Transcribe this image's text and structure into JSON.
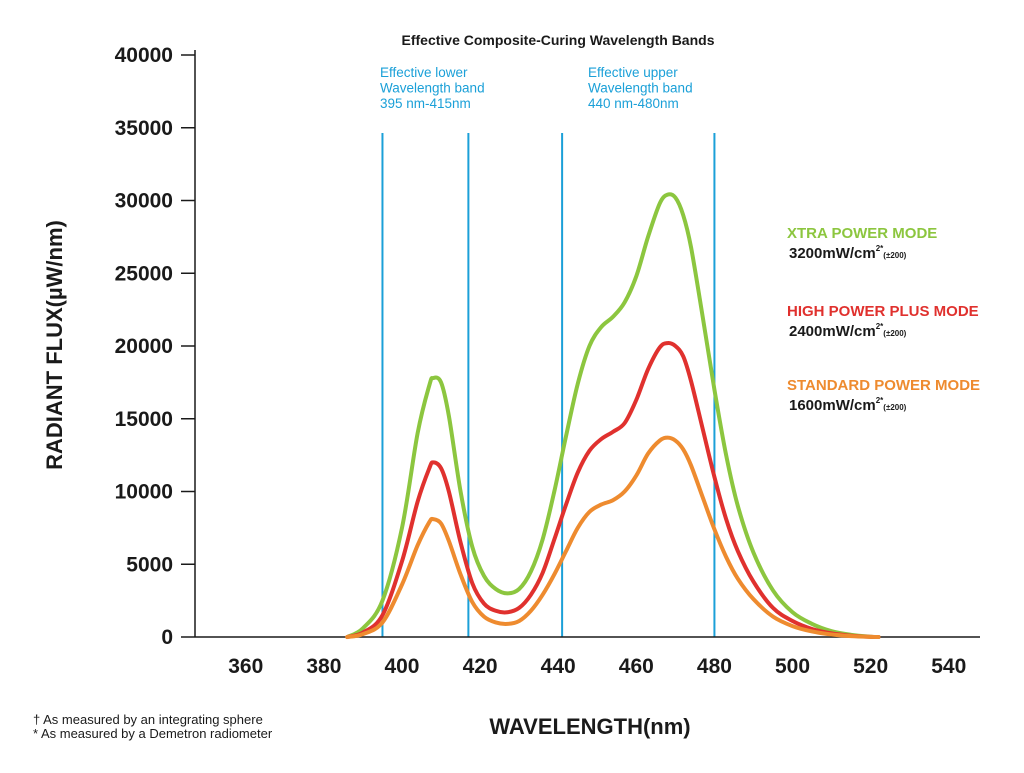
{
  "chart_data": {
    "type": "line",
    "title": "Effective Composite-Curing Wavelength Bands",
    "xlabel": "WAVELENGTH(nm)",
    "ylabel": "RADIANT FLUX(µW/nm)",
    "xlim": [
      347,
      548
    ],
    "ylim": [
      0,
      40000
    ],
    "x_ticks": [
      "360",
      "380",
      "400",
      "420",
      "440",
      "460",
      "480",
      "500",
      "520",
      "540"
    ],
    "y_ticks": [
      "0",
      "5000",
      "10000",
      "15000",
      "20000",
      "25000",
      "30000",
      "35000",
      "40000"
    ],
    "grid": false,
    "band_lines": [
      395,
      417,
      441,
      480
    ],
    "band_labels": [
      {
        "lines": [
          "Effective lower",
          "Wavelength band",
          "395 nm-415nm"
        ]
      },
      {
        "lines": [
          "Effective upper",
          "Wavelength band",
          "440 nm-480nm"
        ]
      }
    ],
    "series": [
      {
        "name": "XTRA POWER MODE",
        "value_text": "3200mW/cm",
        "sup_text": "2*",
        "tolerance_text": "(±200)",
        "color": "#8cc63f",
        "x": [
          386,
          390,
          395,
          400,
          404,
          407,
          408,
          410,
          412,
          415,
          418,
          421,
          424,
          427,
          430,
          433,
          436,
          439,
          442,
          445,
          448,
          451,
          454,
          457,
          460,
          463,
          466,
          468,
          470,
          472,
          474,
          477,
          480,
          483,
          486,
          490,
          495,
          500,
          505,
          510,
          515,
          520,
          522
        ],
        "y": [
          0,
          600,
          2500,
          7500,
          14000,
          17300,
          17800,
          17500,
          15200,
          10000,
          6200,
          4200,
          3300,
          3000,
          3300,
          4500,
          6700,
          10000,
          13800,
          17400,
          20000,
          21300,
          22000,
          23000,
          24800,
          27500,
          29800,
          30400,
          30200,
          29000,
          26800,
          22000,
          17000,
          12500,
          9000,
          5800,
          3200,
          1700,
          900,
          400,
          150,
          20,
          0
        ]
      },
      {
        "name": "HIGH POWER PLUS MODE",
        "value_text": "2400mW/cm",
        "sup_text": "2*",
        "tolerance_text": "(±200)",
        "color": "#e0312e",
        "x": [
          386,
          390,
          395,
          400,
          404,
          407,
          408,
          410,
          412,
          415,
          418,
          421,
          424,
          427,
          430,
          433,
          436,
          439,
          442,
          445,
          448,
          451,
          454,
          457,
          460,
          463,
          466,
          468,
          470,
          472,
          474,
          477,
          480,
          483,
          486,
          490,
          495,
          500,
          505,
          510,
          515,
          520,
          522
        ],
        "y": [
          0,
          300,
          1500,
          5200,
          9300,
          11600,
          12000,
          11600,
          10000,
          6500,
          3700,
          2300,
          1800,
          1700,
          2000,
          2900,
          4400,
          6700,
          9100,
          11300,
          12800,
          13600,
          14100,
          14700,
          16300,
          18400,
          19900,
          20200,
          20000,
          19300,
          17600,
          14300,
          11000,
          8100,
          5900,
          3800,
          2000,
          1100,
          550,
          250,
          90,
          10,
          0
        ]
      },
      {
        "name": "STANDARD POWER MODE",
        "value_text": "1600mW/cm",
        "sup_text": "2*",
        "tolerance_text": "(±200)",
        "color": "#ee8b2f",
        "x": [
          386,
          390,
          395,
          400,
          404,
          407,
          408,
          410,
          412,
          415,
          418,
          421,
          424,
          427,
          430,
          433,
          436,
          439,
          442,
          445,
          448,
          451,
          454,
          457,
          460,
          463,
          466,
          468,
          470,
          472,
          474,
          477,
          480,
          483,
          486,
          490,
          495,
          500,
          505,
          510,
          515,
          520,
          522
        ],
        "y": [
          0,
          200,
          1000,
          3600,
          6300,
          7900,
          8100,
          7800,
          6600,
          4300,
          2400,
          1400,
          1000,
          900,
          1100,
          1800,
          2900,
          4300,
          5900,
          7500,
          8600,
          9100,
          9400,
          10000,
          11100,
          12600,
          13500,
          13700,
          13500,
          12900,
          11800,
          9600,
          7400,
          5500,
          4000,
          2600,
          1400,
          750,
          380,
          170,
          60,
          5,
          0
        ]
      }
    ]
  },
  "footnotes": [
    "† As measured by an integrating sphere",
    "* As measured by a Demetron radiometer"
  ]
}
